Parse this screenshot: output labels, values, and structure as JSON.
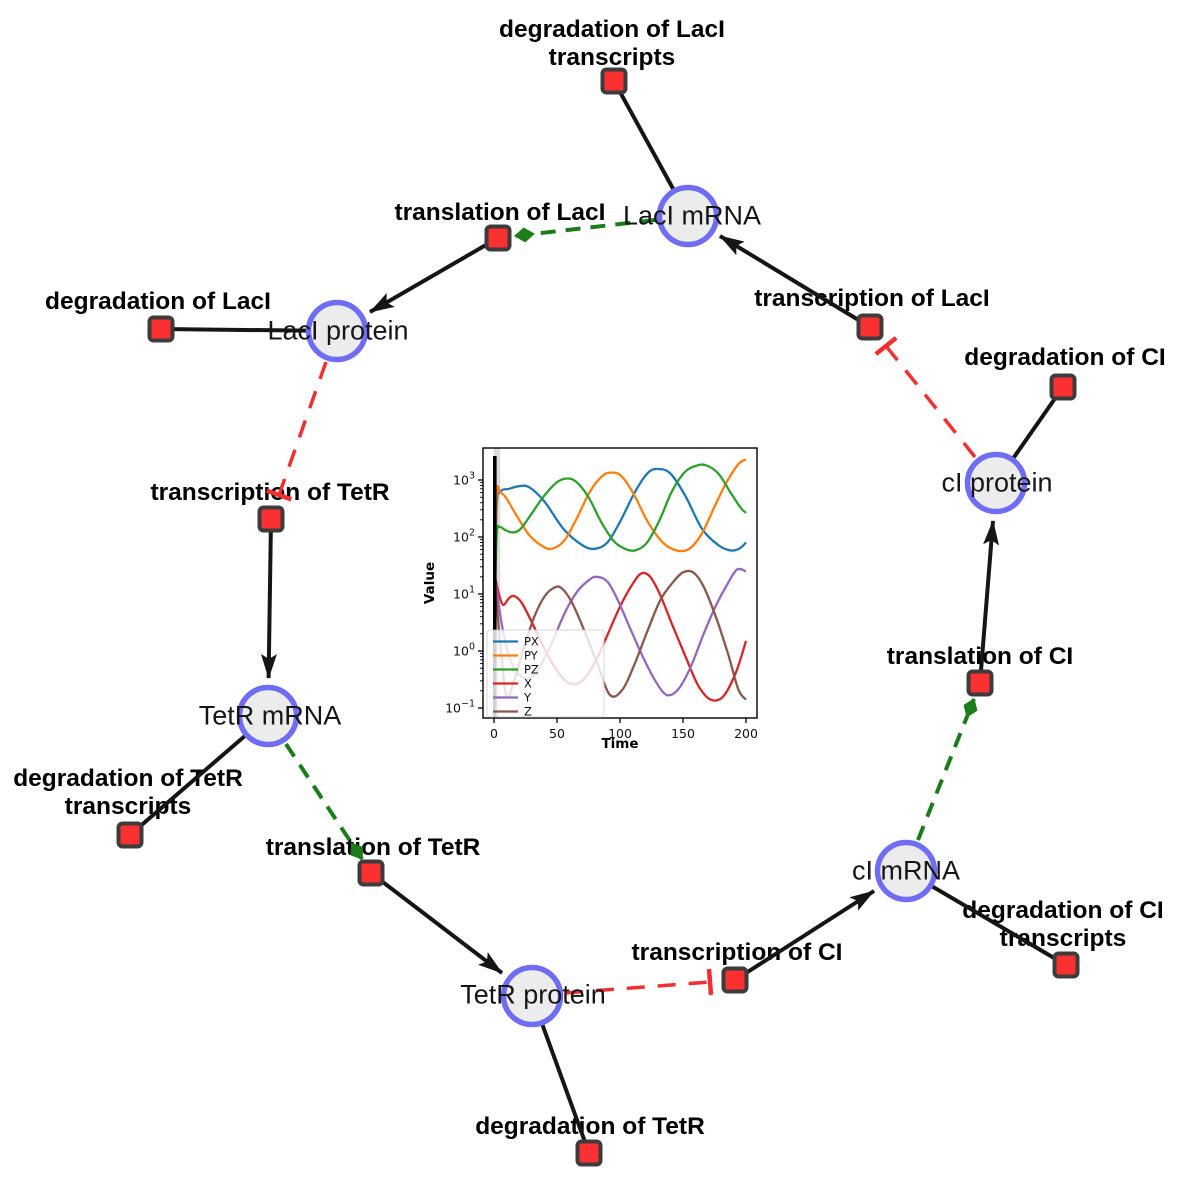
{
  "diagram": {
    "species": [
      {
        "id": "laci-mrna",
        "label": "LacI mRNA"
      },
      {
        "id": "laci-protein",
        "label": "LacI protein"
      },
      {
        "id": "tetr-mrna",
        "label": "TetR mRNA"
      },
      {
        "id": "tetr-protein",
        "label": "TetR protein"
      },
      {
        "id": "ci-mrna",
        "label": "cI mRNA"
      },
      {
        "id": "ci-protein",
        "label": "cI protein"
      }
    ],
    "reactions": [
      {
        "id": "deg-laci-transcripts",
        "line1": "degradation of LacI",
        "line2": "transcripts"
      },
      {
        "id": "translation-laci",
        "line1": "translation of LacI"
      },
      {
        "id": "transcription-laci",
        "line1": "transcription of LacI"
      },
      {
        "id": "deg-laci",
        "line1": "degradation of LacI"
      },
      {
        "id": "transcription-tetr",
        "line1": "transcription of TetR"
      },
      {
        "id": "deg-tetr-transcripts",
        "line1": "degradation of TetR",
        "line2": "transcripts"
      },
      {
        "id": "translation-tetr",
        "line1": "translation of TetR"
      },
      {
        "id": "deg-tetr",
        "line1": "degradation of TetR"
      },
      {
        "id": "transcription-ci",
        "line1": "transcription of CI"
      },
      {
        "id": "deg-ci-transcripts",
        "line1": "degradation of CI",
        "line2": "transcripts"
      },
      {
        "id": "translation-ci",
        "line1": "translation of CI"
      },
      {
        "id": "deg-ci",
        "line1": "degradation of CI"
      }
    ],
    "colors": {
      "species_fill": "#ececec",
      "species_stroke": "#6f6df4",
      "reaction_fill": "#fb3131",
      "reaction_stroke": "#3c3c3c",
      "reaction_edge": "#151515",
      "activation_edge": "#1a7d1a",
      "inhibition_edge": "#f03030"
    }
  },
  "chart_data": {
    "type": "line",
    "title": "",
    "xlabel": "Time",
    "ylabel": "Value",
    "yscale": "log",
    "xlim": [
      -10,
      209
    ],
    "ylim_exp": [
      -1.18,
      3.56
    ],
    "grid": false,
    "legend_position": "lower left",
    "x_ticks": [
      0,
      50,
      100,
      150,
      200
    ],
    "x_tick_labels": [
      "0",
      "50",
      "100",
      "150",
      "200"
    ],
    "y_ticks": [
      {
        "exp": 3,
        "sup": "3"
      },
      {
        "exp": 2,
        "sup": "2"
      },
      {
        "exp": 1,
        "sup": "1"
      },
      {
        "exp": 0,
        "sup": "0"
      },
      {
        "exp": -1,
        "sup": "−1"
      }
    ],
    "event_line_x": 0.6,
    "band": [
      -0.3,
      5
    ],
    "series": [
      {
        "name": "PX",
        "color": "#1f77b4",
        "points": [
          [
            0,
            2
          ],
          [
            2,
            300
          ],
          [
            5,
            620
          ],
          [
            12,
            700
          ],
          [
            20,
            780
          ],
          [
            28,
            745
          ],
          [
            40,
            420
          ],
          [
            55,
            140
          ],
          [
            70,
            72
          ],
          [
            80,
            62
          ],
          [
            90,
            80
          ],
          [
            100,
            185
          ],
          [
            112,
            620
          ],
          [
            122,
            1320
          ],
          [
            130,
            1560
          ],
          [
            140,
            1300
          ],
          [
            152,
            520
          ],
          [
            165,
            140
          ],
          [
            178,
            72
          ],
          [
            188,
            58
          ],
          [
            195,
            63
          ],
          [
            200,
            80
          ]
        ]
      },
      {
        "name": "PY",
        "color": "#ff7f0e",
        "points": [
          [
            0,
            2
          ],
          [
            2,
            480
          ],
          [
            5,
            600
          ],
          [
            10,
            470
          ],
          [
            18,
            235
          ],
          [
            28,
            108
          ],
          [
            38,
            70
          ],
          [
            46,
            62
          ],
          [
            56,
            88
          ],
          [
            66,
            220
          ],
          [
            76,
            620
          ],
          [
            86,
            1180
          ],
          [
            93,
            1350
          ],
          [
            101,
            1180
          ],
          [
            111,
            560
          ],
          [
            122,
            185
          ],
          [
            134,
            80
          ],
          [
            145,
            58
          ],
          [
            155,
            62
          ],
          [
            165,
            115
          ],
          [
            175,
            340
          ],
          [
            185,
            950
          ],
          [
            194,
            1900
          ],
          [
            200,
            2300
          ]
        ]
      },
      {
        "name": "PZ",
        "color": "#2ca02c",
        "points": [
          [
            0,
            2
          ],
          [
            2,
            100
          ],
          [
            4,
            150
          ],
          [
            9,
            132
          ],
          [
            15,
            120
          ],
          [
            21,
            138
          ],
          [
            29,
            240
          ],
          [
            39,
            500
          ],
          [
            49,
            880
          ],
          [
            57,
            1060
          ],
          [
            65,
            940
          ],
          [
            75,
            500
          ],
          [
            85,
            185
          ],
          [
            95,
            85
          ],
          [
            104,
            62
          ],
          [
            112,
            58
          ],
          [
            121,
            78
          ],
          [
            131,
            190
          ],
          [
            141,
            620
          ],
          [
            151,
            1350
          ],
          [
            160,
            1760
          ],
          [
            168,
            1820
          ],
          [
            178,
            1300
          ],
          [
            188,
            590
          ],
          [
            196,
            320
          ],
          [
            200,
            265
          ]
        ]
      },
      {
        "name": "X",
        "color": "#d62728",
        "points": [
          [
            0,
            25
          ],
          [
            3,
            12
          ],
          [
            7,
            6.5
          ],
          [
            12,
            8.5
          ],
          [
            16,
            9.2
          ],
          [
            22,
            7
          ],
          [
            30,
            3.2
          ],
          [
            40,
            1.1
          ],
          [
            50,
            0.45
          ],
          [
            60,
            0.27
          ],
          [
            70,
            0.3
          ],
          [
            80,
            0.62
          ],
          [
            90,
            1.9
          ],
          [
            100,
            6
          ],
          [
            110,
            15
          ],
          [
            117,
            23
          ],
          [
            124,
            20
          ],
          [
            132,
            9.5
          ],
          [
            142,
            2.7
          ],
          [
            152,
            0.8
          ],
          [
            162,
            0.25
          ],
          [
            172,
            0.14
          ],
          [
            182,
            0.16
          ],
          [
            192,
            0.42
          ],
          [
            200,
            1.5
          ]
        ]
      },
      {
        "name": "Y",
        "color": "#9467bd",
        "points": [
          [
            0,
            25
          ],
          [
            4,
            6
          ],
          [
            8,
            1.8
          ],
          [
            14,
            0.6
          ],
          [
            20,
            0.38
          ],
          [
            28,
            0.33
          ],
          [
            36,
            0.52
          ],
          [
            46,
            1.4
          ],
          [
            56,
            4.6
          ],
          [
            66,
            11
          ],
          [
            76,
            18
          ],
          [
            82,
            20
          ],
          [
            90,
            16.5
          ],
          [
            98,
            8
          ],
          [
            108,
            2.5
          ],
          [
            118,
            0.8
          ],
          [
            128,
            0.3
          ],
          [
            137,
            0.17
          ],
          [
            146,
            0.21
          ],
          [
            156,
            0.52
          ],
          [
            166,
            1.9
          ],
          [
            176,
            6.2
          ],
          [
            186,
            16
          ],
          [
            193,
            27
          ],
          [
            200,
            25
          ]
        ]
      },
      {
        "name": "Z",
        "color": "#8c564b",
        "points": [
          [
            0,
            25
          ],
          [
            3,
            4
          ],
          [
            6,
            0.8
          ],
          [
            10,
            0.16
          ],
          [
            16,
            0.3
          ],
          [
            24,
            1.2
          ],
          [
            32,
            4
          ],
          [
            40,
            9
          ],
          [
            48,
            13
          ],
          [
            54,
            12.5
          ],
          [
            62,
            7
          ],
          [
            72,
            2.2
          ],
          [
            82,
            0.6
          ],
          [
            92,
            0.17
          ],
          [
            102,
            0.21
          ],
          [
            112,
            0.62
          ],
          [
            122,
            2.3
          ],
          [
            132,
            7.8
          ],
          [
            142,
            16
          ],
          [
            150,
            24
          ],
          [
            158,
            24
          ],
          [
            166,
            14
          ],
          [
            176,
            4
          ],
          [
            186,
            0.85
          ],
          [
            194,
            0.21
          ],
          [
            200,
            0.14
          ]
        ]
      }
    ]
  }
}
